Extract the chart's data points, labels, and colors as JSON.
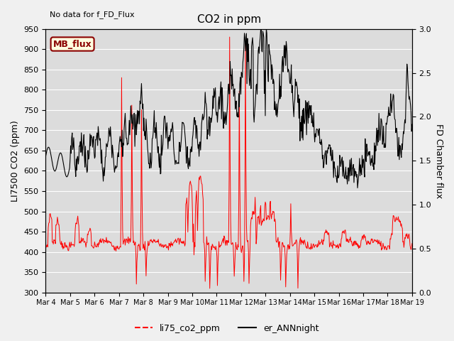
{
  "title": "CO2 in ppm",
  "ylabel_left": "LI7500 CO2 (ppm)",
  "ylabel_right": "FD Chamber flux",
  "ylim_left": [
    300,
    950
  ],
  "ylim_right": [
    0.0,
    3.0
  ],
  "note_text": "No data for f_FD_Flux",
  "mb_flux_label": "MB_flux",
  "legend_labels": [
    "li75_co2_ppm",
    "er_ANNnight"
  ],
  "x_tick_labels": [
    "Mar 4",
    "Mar 5",
    "Mar 6",
    "Mar 7",
    "Mar 8",
    "Mar 9",
    "Mar 10",
    "Mar 11",
    "Mar 12",
    "Mar 13",
    "Mar 14",
    "Mar 15",
    "Mar 16",
    "Mar 17",
    "Mar 18",
    "Mar 19"
  ],
  "background_color": "#f0f0f0",
  "plot_bg_color": "#e0e0e0"
}
